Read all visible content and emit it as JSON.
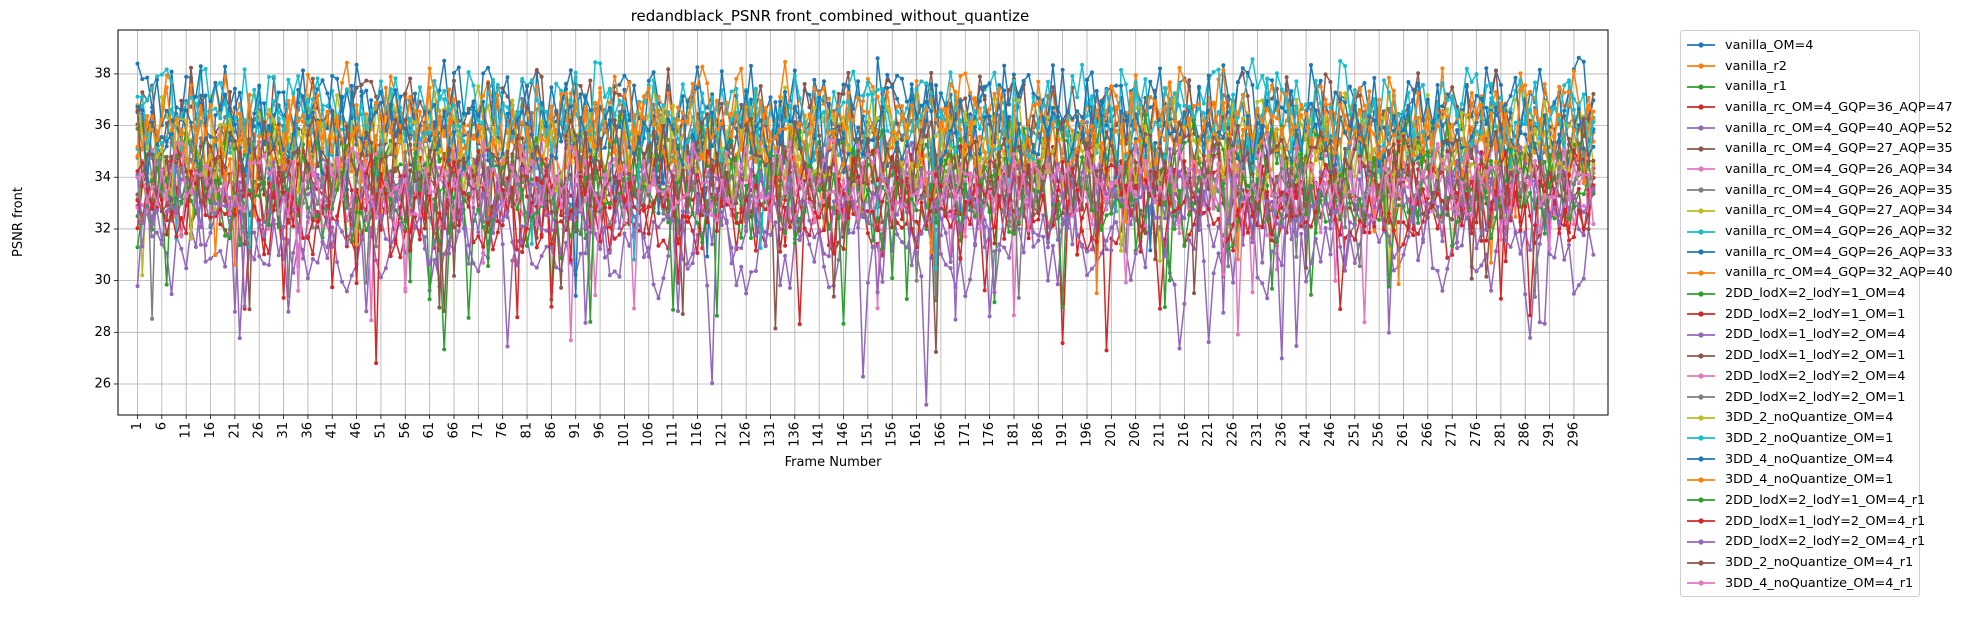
{
  "chart_data": {
    "type": "line",
    "title": "redandblack_PSNR front_combined_without_quantize",
    "xlabel": "Frame Number",
    "ylabel": "PSNR front",
    "xlim": [
      -3,
      303
    ],
    "ylim": [
      24.8,
      39.7
    ],
    "yticks": [
      26,
      28,
      30,
      32,
      34,
      36,
      38
    ],
    "xticks": [
      1,
      6,
      11,
      16,
      21,
      26,
      31,
      36,
      41,
      46,
      51,
      56,
      61,
      66,
      71,
      76,
      81,
      86,
      91,
      96,
      101,
      106,
      111,
      116,
      121,
      126,
      131,
      136,
      141,
      146,
      151,
      156,
      161,
      166,
      171,
      176,
      181,
      186,
      191,
      196,
      201,
      206,
      211,
      216,
      221,
      226,
      231,
      236,
      241,
      246,
      251,
      256,
      261,
      266,
      271,
      276,
      281,
      286,
      291,
      296
    ],
    "x_start": 1,
    "x_end": 300,
    "grid": true,
    "legend_position": "outside-right",
    "series": [
      {
        "name": "vanilla_OM=4",
        "color": "#1f77b4",
        "base": 36.6,
        "amp": 1.3,
        "seed": 1
      },
      {
        "name": "vanilla_r2",
        "color": "#ff7f0e",
        "base": 36.4,
        "amp": 1.3,
        "seed": 2
      },
      {
        "name": "vanilla_r1",
        "color": "#2ca02c",
        "base": 33.6,
        "amp": 1.3,
        "seed": 3
      },
      {
        "name": "vanilla_rc_OM=4_GQP=36_AQP=47",
        "color": "#d62728",
        "base": 33.0,
        "amp": 1.4,
        "seed": 4
      },
      {
        "name": "vanilla_rc_OM=4_GQP=40_AQP=52",
        "color": "#9467bd",
        "base": 31.3,
        "amp": 1.3,
        "seed": 5
      },
      {
        "name": "vanilla_rc_OM=4_GQP=27_AQP=35",
        "color": "#8c564b",
        "base": 36.2,
        "amp": 1.3,
        "seed": 6
      },
      {
        "name": "vanilla_rc_OM=4_GQP=26_AQP=34",
        "color": "#e377c2",
        "base": 34.2,
        "amp": 1.2,
        "seed": 7
      },
      {
        "name": "vanilla_rc_OM=4_GQP=26_AQP=35",
        "color": "#7f7f7f",
        "base": 35.4,
        "amp": 1.2,
        "seed": 8
      },
      {
        "name": "vanilla_rc_OM=4_GQP=27_AQP=34",
        "color": "#bcbd22",
        "base": 35.6,
        "amp": 1.3,
        "seed": 9
      },
      {
        "name": "vanilla_rc_OM=4_GQP=26_AQP=32",
        "color": "#17becf",
        "base": 36.6,
        "amp": 1.3,
        "seed": 10
      },
      {
        "name": "vanilla_rc_OM=4_GQP=26_AQP=33",
        "color": "#1f77b4",
        "base": 36.3,
        "amp": 1.3,
        "seed": 11
      },
      {
        "name": "vanilla_rc_OM=4_GQP=32_AQP=40",
        "color": "#ff7f0e",
        "base": 35.6,
        "amp": 1.3,
        "seed": 12
      },
      {
        "name": "2DD_lodX=2_lodY=1_OM=4",
        "color": "#2ca02c",
        "base": 34.4,
        "amp": 1.3,
        "seed": 13
      },
      {
        "name": "2DD_lodX=2_lodY=1_OM=1",
        "color": "#d62728",
        "base": 33.4,
        "amp": 1.3,
        "seed": 14
      },
      {
        "name": "2DD_lodX=1_lodY=2_OM=4",
        "color": "#9467bd",
        "base": 33.2,
        "amp": 1.4,
        "seed": 15
      },
      {
        "name": "2DD_lodX=1_lodY=2_OM=1",
        "color": "#8c564b",
        "base": 33.7,
        "amp": 1.3,
        "seed": 16
      },
      {
        "name": "2DD_lodX=2_lodY=2_OM=4",
        "color": "#e377c2",
        "base": 33.5,
        "amp": 1.2,
        "seed": 17
      },
      {
        "name": "2DD_lodX=2_lodY=2_OM=1",
        "color": "#7f7f7f",
        "base": 33.6,
        "amp": 1.2,
        "seed": 18
      },
      {
        "name": "3DD_2_noQuantize_OM=4",
        "color": "#bcbd22",
        "base": 35.0,
        "amp": 1.3,
        "seed": 19
      },
      {
        "name": "3DD_2_noQuantize_OM=1",
        "color": "#17becf",
        "base": 36.2,
        "amp": 1.3,
        "seed": 20
      },
      {
        "name": "3DD_4_noQuantize_OM=4",
        "color": "#1f77b4",
        "base": 35.8,
        "amp": 1.3,
        "seed": 21
      },
      {
        "name": "3DD_4_noQuantize_OM=1",
        "color": "#ff7f0e",
        "base": 35.7,
        "amp": 1.3,
        "seed": 22
      },
      {
        "name": "2DD_lodX=2_lodY=1_OM=4_r1",
        "color": "#2ca02c",
        "base": 33.2,
        "amp": 1.3,
        "seed": 23
      },
      {
        "name": "2DD_lodX=1_lodY=2_OM=4_r1",
        "color": "#d62728",
        "base": 32.9,
        "amp": 1.3,
        "seed": 24
      },
      {
        "name": "2DD_lodX=2_lodY=2_OM=4_r1",
        "color": "#9467bd",
        "base": 32.6,
        "amp": 1.3,
        "seed": 25
      },
      {
        "name": "3DD_2_noQuantize_OM=4_r1",
        "color": "#8c564b",
        "base": 34.5,
        "amp": 1.3,
        "seed": 26
      },
      {
        "name": "3DD_4_noQuantize_OM=4_r1",
        "color": "#e377c2",
        "base": 33.8,
        "amp": 1.2,
        "seed": 27
      }
    ]
  }
}
